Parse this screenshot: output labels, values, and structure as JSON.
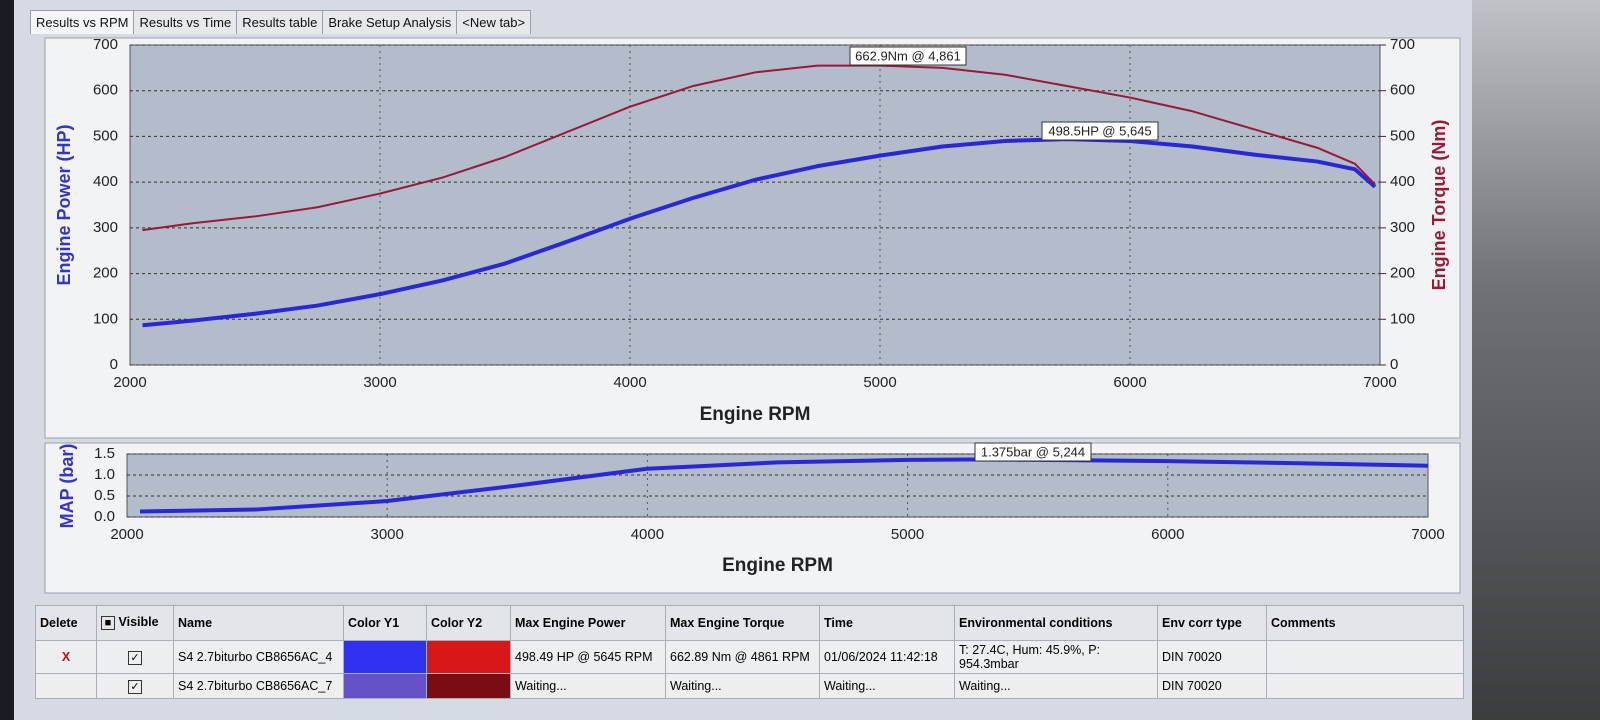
{
  "tabs": [
    "Results vs RPM",
    "Results vs Time",
    "Results table",
    "Brake Setup Analysis",
    "<New tab>"
  ],
  "chart_data": [
    {
      "type": "line",
      "x_label": "Engine RPM",
      "y_label": "Engine Power (HP)",
      "y2_label": "Engine Torque (Nm)",
      "annotations": [
        "662.9Nm @ 4,861",
        "498.5HP @ 5,645"
      ],
      "x": [
        2050,
        2250,
        2500,
        2750,
        3000,
        3250,
        3500,
        3750,
        4000,
        4250,
        4500,
        4750,
        5000,
        5250,
        5500,
        5750,
        6000,
        6250,
        6500,
        6750,
        6900,
        6980
      ],
      "series": [
        {
          "name": "Engine Power",
          "color": "#2828d8",
          "values": [
            87,
            97,
            112,
            130,
            155,
            185,
            222,
            270,
            320,
            365,
            405,
            435,
            458,
            478,
            490,
            494,
            490,
            478,
            460,
            445,
            428,
            390
          ]
        },
        {
          "name": "Engine Torque",
          "color": "#9a1838",
          "axis": "y2",
          "values": [
            295,
            310,
            325,
            345,
            375,
            410,
            455,
            510,
            565,
            610,
            640,
            655,
            655,
            650,
            635,
            610,
            585,
            555,
            515,
            475,
            440,
            395
          ]
        }
      ],
      "xlim": [
        2000,
        7000
      ],
      "xticks": [
        2000,
        3000,
        4000,
        5000,
        6000,
        7000
      ],
      "ylim": [
        0,
        700
      ],
      "yticks": [
        0,
        100,
        200,
        300,
        400,
        500,
        600,
        700
      ],
      "y2lim": [
        0,
        700
      ],
      "y2ticks": [
        0,
        100,
        200,
        300,
        400,
        500,
        600,
        700
      ],
      "grid": true
    },
    {
      "type": "line",
      "x_label": "Engine RPM",
      "y_label": "MAP (bar)",
      "annotations": [
        "1.375bar @ 5,244"
      ],
      "x": [
        2050,
        2500,
        3000,
        3500,
        4000,
        4500,
        5000,
        5244,
        5500,
        6000,
        6500,
        7000
      ],
      "series": [
        {
          "name": "MAP",
          "color": "#2828d8",
          "values": [
            0.13,
            0.18,
            0.38,
            0.75,
            1.15,
            1.3,
            1.36,
            1.37,
            1.36,
            1.33,
            1.28,
            1.22
          ]
        }
      ],
      "xlim": [
        2000,
        7000
      ],
      "xticks": [
        2000,
        3000,
        4000,
        5000,
        6000,
        7000
      ],
      "ylim": [
        0,
        1.5
      ],
      "yticks": [
        {
          "value": 0,
          "label": "0.0"
        },
        0.5,
        {
          "value": 1,
          "label": "1.0"
        },
        1.5
      ],
      "grid": true
    }
  ],
  "table": {
    "headers": [
      "Delete",
      "Visible",
      "Name",
      "Color Y1",
      "Color Y2",
      "Max Engine Power",
      "Max Engine Torque",
      "Time",
      "Environmental conditions",
      "Env corr type",
      "Comments"
    ],
    "rows": [
      {
        "delete": "X",
        "name": "S4 2.7biturbo CB8656AC_4",
        "color_y1": "#3030f0",
        "color_y2": "#d81818",
        "max_power": "498.49 HP @ 5645 RPM",
        "max_torque": "662.89 Nm @ 4861 RPM",
        "time": "01/06/2024 11:42:18",
        "env": "T: 27.4C, Hum: 45.9%, P: 954.3mbar",
        "env_corr": "DIN 70020"
      },
      {
        "name": "S4 2.7biturbo CB8656AC_7",
        "color_y1": "#6450c8",
        "color_y2": "#7a0c14",
        "max_power": "Waiting...",
        "max_torque": "Waiting...",
        "time": "Waiting...",
        "env": "Waiting...",
        "env_corr": "DIN 70020"
      }
    ]
  }
}
